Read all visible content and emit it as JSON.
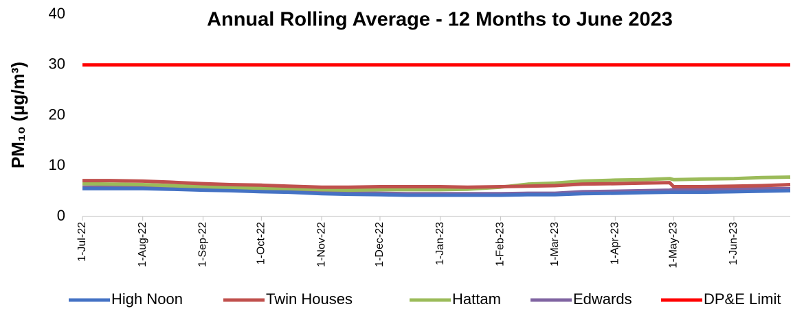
{
  "chart_data": {
    "type": "line",
    "title": "Annual Rolling Average - 12 Months to June 2023",
    "y_label": "PM₁₀ (µg/m³)",
    "x": [
      "2022-07-01",
      "2022-07-15",
      "2022-08-01",
      "2022-08-15",
      "2022-09-01",
      "2022-09-15",
      "2022-10-01",
      "2022-10-15",
      "2022-11-01",
      "2022-11-15",
      "2022-12-01",
      "2022-12-15",
      "2023-01-01",
      "2023-01-15",
      "2023-02-01",
      "2023-02-15",
      "2023-03-01",
      "2023-03-15",
      "2023-04-01",
      "2023-04-15",
      "2023-04-29",
      "2023-05-01",
      "2023-05-15",
      "2023-06-01",
      "2023-06-15",
      "2023-06-30"
    ],
    "series": [
      {
        "name": "High Noon",
        "color": "#4472c4",
        "values": [
          5.5,
          5.5,
          5.5,
          5.4,
          5.2,
          5.1,
          4.9,
          4.8,
          4.5,
          4.4,
          4.3,
          4.2,
          4.2,
          4.2,
          4.2,
          4.3,
          4.3,
          4.5,
          4.6,
          4.7,
          4.8,
          4.8,
          4.8,
          4.9,
          5.0,
          5.1
        ]
      },
      {
        "name": "Twin Houses",
        "color": "#c0504d",
        "values": [
          7.1,
          7.1,
          7.0,
          6.8,
          6.5,
          6.3,
          6.2,
          6.0,
          5.8,
          5.8,
          5.9,
          5.9,
          5.9,
          5.8,
          5.9,
          6.0,
          6.1,
          6.4,
          6.5,
          6.6,
          6.7,
          5.9,
          5.9,
          6.0,
          6.1,
          6.3
        ]
      },
      {
        "name": "Hattam",
        "color": "#9bbb59",
        "values": [
          6.5,
          6.4,
          6.3,
          6.1,
          5.9,
          5.7,
          5.6,
          5.5,
          5.3,
          5.2,
          5.3,
          5.3,
          5.3,
          5.4,
          5.8,
          6.4,
          6.6,
          7.0,
          7.2,
          7.3,
          7.5,
          7.3,
          7.4,
          7.5,
          7.7,
          7.8
        ]
      },
      {
        "name": "Edwards",
        "color": "#8064a2",
        "values": [
          5.8,
          5.8,
          5.8,
          5.7,
          5.5,
          5.3,
          5.1,
          5.0,
          4.7,
          4.6,
          4.6,
          4.5,
          4.5,
          4.5,
          4.5,
          4.6,
          4.6,
          4.9,
          5.0,
          5.1,
          5.2,
          5.3,
          5.3,
          5.4,
          5.5,
          5.5
        ]
      },
      {
        "name": "DP&E Limit",
        "color": "#ff0000",
        "values": [
          30,
          30,
          30,
          30,
          30,
          30,
          30,
          30,
          30,
          30,
          30,
          30,
          30,
          30,
          30,
          30,
          30,
          30,
          30,
          30,
          30,
          30,
          30,
          30,
          30,
          30
        ]
      }
    ],
    "xlim": [
      "2022-07-01",
      "2023-06-30"
    ],
    "xticks": [
      {
        "value": "2022-07-01",
        "label": "1-Jul-22"
      },
      {
        "value": "2022-08-01",
        "label": "1-Aug-22"
      },
      {
        "value": "2022-09-01",
        "label": "1-Sep-22"
      },
      {
        "value": "2022-10-01",
        "label": "1-Oct-22"
      },
      {
        "value": "2022-11-01",
        "label": "1-Nov-22"
      },
      {
        "value": "2022-12-01",
        "label": "1-Dec-22"
      },
      {
        "value": "2023-01-01",
        "label": "1-Jan-23"
      },
      {
        "value": "2023-02-01",
        "label": "1-Feb-23"
      },
      {
        "value": "2023-03-01",
        "label": "1-Mar-23"
      },
      {
        "value": "2023-04-01",
        "label": "1-Apr-23"
      },
      {
        "value": "2023-05-01",
        "label": "1-May-23"
      },
      {
        "value": "2023-06-01",
        "label": "1-Jun-23"
      }
    ],
    "ylim": [
      0,
      40
    ],
    "yticks": [
      0,
      10,
      20,
      30,
      40
    ],
    "grid": false,
    "legend": "bottom"
  }
}
